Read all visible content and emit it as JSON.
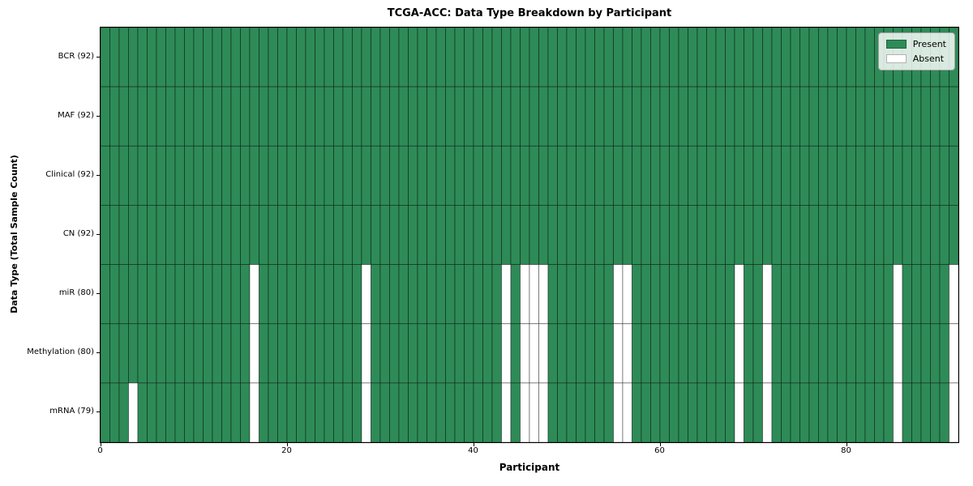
{
  "chart_data": {
    "type": "heatmap",
    "title": "TCGA-ACC: Data Type Breakdown by Participant",
    "xlabel": "Participant",
    "ylabel": "Data Type (Total Sample Count)",
    "n_participants": 92,
    "x_ticks": [
      0,
      20,
      40,
      60,
      80
    ],
    "rows": [
      {
        "label": "BCR (92)",
        "data_type": "BCR",
        "present_count": 92,
        "absent_participants": []
      },
      {
        "label": "MAF (92)",
        "data_type": "MAF",
        "present_count": 92,
        "absent_participants": []
      },
      {
        "label": "Clinical (92)",
        "data_type": "Clinical",
        "present_count": 92,
        "absent_participants": []
      },
      {
        "label": "CN (92)",
        "data_type": "CN",
        "present_count": 92,
        "absent_participants": []
      },
      {
        "label": "miR (80)",
        "data_type": "miR",
        "present_count": 80,
        "absent_participants": [
          16,
          28,
          43,
          45,
          46,
          47,
          55,
          56,
          68,
          71,
          85,
          91
        ]
      },
      {
        "label": "Methylation (80)",
        "data_type": "Methylation",
        "present_count": 80,
        "absent_participants": [
          16,
          28,
          43,
          45,
          46,
          47,
          55,
          56,
          68,
          71,
          85,
          91
        ]
      },
      {
        "label": "mRNA (79)",
        "data_type": "mRNA",
        "present_count": 79,
        "absent_participants": [
          3,
          16,
          28,
          43,
          45,
          46,
          47,
          55,
          56,
          68,
          71,
          85,
          91
        ]
      }
    ],
    "legend": {
      "entries": [
        "Present",
        "Absent"
      ],
      "location": "upper right"
    },
    "colors": {
      "present": "#2e8b57",
      "absent": "#ffffff",
      "cell_edge": "rgba(0,0,0,0.5)"
    }
  }
}
